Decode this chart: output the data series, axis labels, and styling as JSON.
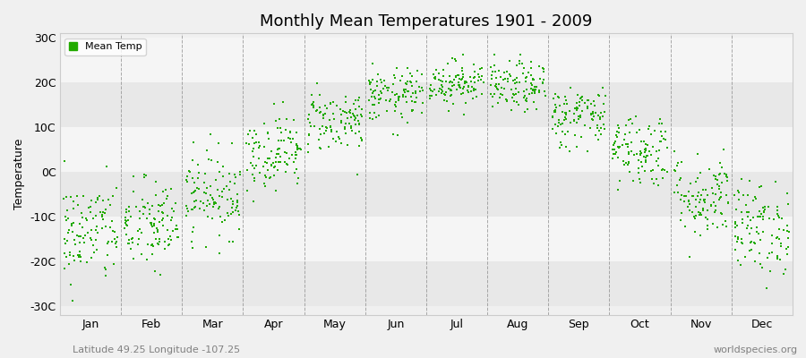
{
  "title": "Monthly Mean Temperatures 1901 - 2009",
  "ylabel": "Temperature",
  "yticks": [
    -30,
    -20,
    -10,
    0,
    10,
    20,
    30
  ],
  "ytick_labels": [
    "-30C",
    "-20C",
    "-10C",
    "0C",
    "10C",
    "20C",
    "30C"
  ],
  "ylim": [
    -32,
    31
  ],
  "months": [
    "Jan",
    "Feb",
    "Mar",
    "Apr",
    "May",
    "Jun",
    "Jul",
    "Aug",
    "Sep",
    "Oct",
    "Nov",
    "Dec"
  ],
  "month_means": [
    -13.5,
    -12.0,
    -5.0,
    4.5,
    11.5,
    17.0,
    20.0,
    19.0,
    12.5,
    5.0,
    -5.5,
    -12.5
  ],
  "month_stds": [
    5.8,
    5.2,
    4.8,
    4.2,
    3.5,
    3.0,
    2.5,
    2.8,
    3.5,
    4.2,
    4.8,
    5.2
  ],
  "n_years": 109,
  "dot_color": "#22AA00",
  "dot_size": 2,
  "dot_marker": "s",
  "legend_label": "Mean Temp",
  "bg_color": "#f0f0f0",
  "bg_band_light": "#f5f5f5",
  "bg_band_dark": "#e8e8e8",
  "grid_color": "#888888",
  "subtitle_left": "Latitude 49.25 Longitude -107.25",
  "subtitle_right": "worldspecies.org",
  "subtitle_fontsize": 8,
  "title_fontsize": 13,
  "axis_fontsize": 9,
  "seed": 42
}
